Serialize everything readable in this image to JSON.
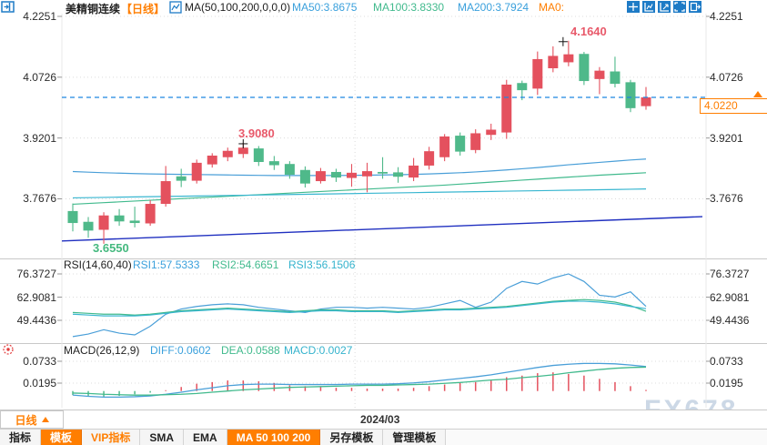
{
  "header": {
    "title": "美精铜连续",
    "period_tag": "【日线】",
    "indicator_formula": "MA(50,100,200,0,0,0)",
    "ma50_label": "MA50:3.8675",
    "ma100_label": "MA100:3.8330",
    "ma200_label": "MA200:3.7924",
    "ma0_label": "MA0:"
  },
  "price_axis": {
    "ticks": [
      "4.2251",
      "4.0726",
      "3.9201",
      "3.7676"
    ],
    "last_price_label": "4.0220"
  },
  "annotations": {
    "high_label": "4.1640",
    "swing_label": "3.9080",
    "low_label": "3.6550"
  },
  "rsi_panel": {
    "title": "RSI(14,60,40)",
    "rsi1_label": "RSI1:57.5333",
    "rsi2_label": "RSI2:54.6651",
    "rsi3_label": "RSI3:56.1506",
    "ticks": [
      "76.3727",
      "62.9081",
      "49.4436"
    ]
  },
  "macd_panel": {
    "title": "MACD(26,12,9)",
    "diff_label": "DIFF:0.0602",
    "dea_label": "DEA:0.0588",
    "macd_label": "MACD:0.0027",
    "ticks": [
      "0.0733",
      "0.0195"
    ]
  },
  "x_axis": {
    "label": "2024/03"
  },
  "footer": {
    "period_button": "日线",
    "tabs": [
      {
        "label": "指标",
        "style": "plain"
      },
      {
        "label": "模板",
        "style": "active"
      },
      {
        "label": "VIP指标",
        "style": "vip"
      },
      {
        "label": "SMA",
        "style": "plain"
      },
      {
        "label": "EMA",
        "style": "plain"
      },
      {
        "label": "MA 50 100 200",
        "style": "active"
      },
      {
        "label": "另存模板",
        "style": "plain"
      },
      {
        "label": "管理模板",
        "style": "plain"
      }
    ]
  },
  "watermark": "FX678",
  "colors": {
    "up": "#e4515e",
    "down": "#4fb98a",
    "ma50": "#4a9fd8",
    "ma100": "#41ba8d",
    "ma200": "#38b6d0",
    "trend": "#2030c0",
    "dashed_price": "#1f87e0",
    "grid": "#dcdcdc",
    "separator": "#c8c8c8",
    "orange": "#ff7e00"
  },
  "chart_data": {
    "type": "candlestick",
    "x_label": "2024/03",
    "x_gridline_frac": 0.455,
    "price_panel": {
      "y_ticks": [
        4.2251,
        4.0726,
        3.9201,
        3.7676
      ],
      "last_close": 4.022,
      "marked_high": 4.164,
      "marked_swing_high": 3.908,
      "marked_low": 3.655,
      "ohlc": [
        [
          3.737,
          3.756,
          3.686,
          3.707
        ],
        [
          3.71,
          3.722,
          3.67,
          3.688
        ],
        [
          3.69,
          3.734,
          3.655,
          3.726
        ],
        [
          3.726,
          3.742,
          3.7,
          3.711
        ],
        [
          3.713,
          3.748,
          3.696,
          3.707
        ],
        [
          3.706,
          3.764,
          3.7,
          3.755
        ],
        [
          3.755,
          3.85,
          3.748,
          3.812
        ],
        [
          3.824,
          3.843,
          3.797,
          3.813
        ],
        [
          3.813,
          3.866,
          3.806,
          3.858
        ],
        [
          3.854,
          3.882,
          3.846,
          3.876
        ],
        [
          3.872,
          3.896,
          3.862,
          3.888
        ],
        [
          3.88,
          3.908,
          3.87,
          3.896
        ],
        [
          3.894,
          3.9,
          3.85,
          3.86
        ],
        [
          3.862,
          3.875,
          3.84,
          3.852
        ],
        [
          3.855,
          3.862,
          3.818,
          3.828
        ],
        [
          3.84,
          3.849,
          3.796,
          3.806
        ],
        [
          3.812,
          3.845,
          3.806,
          3.837
        ],
        [
          3.835,
          3.843,
          3.81,
          3.821
        ],
        [
          3.82,
          3.855,
          3.798,
          3.833
        ],
        [
          3.824,
          3.858,
          3.784,
          3.837
        ],
        [
          3.835,
          3.872,
          3.818,
          3.831
        ],
        [
          3.834,
          3.847,
          3.808,
          3.823
        ],
        [
          3.821,
          3.87,
          3.812,
          3.851
        ],
        [
          3.851,
          3.898,
          3.841,
          3.887
        ],
        [
          3.872,
          3.93,
          3.862,
          3.924
        ],
        [
          3.926,
          3.934,
          3.876,
          3.886
        ],
        [
          3.89,
          3.942,
          3.882,
          3.932
        ],
        [
          3.928,
          3.956,
          3.915,
          3.941
        ],
        [
          3.934,
          4.066,
          3.918,
          4.054
        ],
        [
          4.058,
          4.064,
          4.015,
          4.04
        ],
        [
          4.044,
          4.137,
          4.028,
          4.118
        ],
        [
          4.095,
          4.15,
          4.085,
          4.126
        ],
        [
          4.11,
          4.164,
          4.1,
          4.13
        ],
        [
          4.131,
          4.136,
          4.053,
          4.063
        ],
        [
          4.068,
          4.098,
          4.03,
          4.089
        ],
        [
          4.087,
          4.124,
          4.047,
          4.056
        ],
        [
          4.06,
          4.066,
          3.985,
          3.995
        ],
        [
          4.0,
          4.048,
          3.991,
          4.022
        ]
      ],
      "ma50": [
        3.836,
        3.8345,
        3.833,
        3.832,
        3.831,
        3.83,
        3.8295,
        3.829,
        3.8285,
        3.828,
        3.8275,
        3.827,
        3.8265,
        3.826,
        3.826,
        3.826,
        3.826,
        3.8262,
        3.8265,
        3.827,
        3.8275,
        3.828,
        3.829,
        3.83,
        3.8315,
        3.833,
        3.835,
        3.8375,
        3.84,
        3.843,
        3.846,
        3.8495,
        3.853,
        3.856,
        3.859,
        3.862,
        3.865,
        3.8675
      ],
      "ma100": [
        3.754,
        3.756,
        3.758,
        3.76,
        3.762,
        3.764,
        3.766,
        3.768,
        3.77,
        3.772,
        3.774,
        3.776,
        3.778,
        3.78,
        3.782,
        3.784,
        3.786,
        3.788,
        3.79,
        3.792,
        3.794,
        3.796,
        3.798,
        3.8,
        3.802,
        3.8045,
        3.807,
        3.8095,
        3.812,
        3.8145,
        3.817,
        3.8195,
        3.822,
        3.8245,
        3.827,
        3.829,
        3.831,
        3.833
      ],
      "ma200": [
        3.77,
        3.7706,
        3.7712,
        3.7718,
        3.7724,
        3.773,
        3.7736,
        3.7742,
        3.7748,
        3.7754,
        3.776,
        3.7766,
        3.7772,
        3.7778,
        3.7784,
        3.779,
        3.7796,
        3.7802,
        3.7808,
        3.7814,
        3.782,
        3.7826,
        3.7832,
        3.7838,
        3.7844,
        3.785,
        3.7856,
        3.7862,
        3.7868,
        3.7874,
        3.788,
        3.7886,
        3.7892,
        3.7898,
        3.7904,
        3.791,
        3.7917,
        3.7924
      ],
      "trend_line": {
        "start_price": 3.662,
        "end_price": 3.723
      }
    },
    "rsi_panel": {
      "y_ticks": [
        76.3727,
        62.9081,
        49.4436
      ],
      "rsi1": [
        40,
        41.5,
        44,
        42,
        41,
        46,
        53,
        56,
        57.5,
        58.5,
        59,
        58.5,
        57,
        56,
        55,
        54,
        56,
        57,
        57,
        56.5,
        57,
        56.5,
        56,
        57,
        59,
        61,
        57,
        60,
        68,
        72,
        70.5,
        74,
        76.4,
        72,
        64,
        63,
        66,
        57.5
      ],
      "rsi2": [
        54,
        53.5,
        53,
        53,
        52.5,
        53,
        54,
        55,
        55.5,
        56,
        56.5,
        56,
        55.5,
        55,
        54.5,
        55,
        55.5,
        55.5,
        55,
        55,
        55,
        54.5,
        55,
        55.5,
        56,
        56,
        56.5,
        57,
        57.5,
        58.5,
        59.5,
        60.5,
        61,
        61.5,
        61,
        60,
        58,
        54.7
      ],
      "rsi3": [
        53,
        52.5,
        52,
        52,
        52,
        52.5,
        53.5,
        54.5,
        55,
        55.5,
        56,
        55.5,
        55,
        54.5,
        54,
        54.5,
        55,
        55,
        54.5,
        54.5,
        54.5,
        54,
        54.5,
        55,
        55.5,
        55.5,
        56,
        56.5,
        57,
        58,
        59,
        60,
        60.5,
        60.5,
        60,
        59,
        57.5,
        56.2
      ]
    },
    "macd_panel": {
      "y_ticks": [
        0.0733,
        0.0195
      ],
      "histogram_rule": "2*(diff-dea)",
      "diff": [
        -0.01,
        -0.013,
        -0.015,
        -0.015,
        -0.014,
        -0.012,
        -0.008,
        -0.003,
        0.003,
        0.008,
        0.013,
        0.016,
        0.017,
        0.017,
        0.016,
        0.016,
        0.016,
        0.016,
        0.017,
        0.017,
        0.017,
        0.018,
        0.02,
        0.023,
        0.027,
        0.031,
        0.035,
        0.04,
        0.046,
        0.052,
        0.058,
        0.063,
        0.066,
        0.068,
        0.068,
        0.067,
        0.064,
        0.0602
      ],
      "dea": [
        -0.005,
        -0.006,
        -0.008,
        -0.009,
        -0.01,
        -0.01,
        -0.009,
        -0.008,
        -0.006,
        -0.003,
        0.0,
        0.003,
        0.005,
        0.007,
        0.009,
        0.01,
        0.011,
        0.012,
        0.013,
        0.014,
        0.014,
        0.015,
        0.016,
        0.017,
        0.019,
        0.021,
        0.024,
        0.027,
        0.029,
        0.033,
        0.036,
        0.04,
        0.045,
        0.049,
        0.053,
        0.056,
        0.058,
        0.0588
      ]
    }
  }
}
